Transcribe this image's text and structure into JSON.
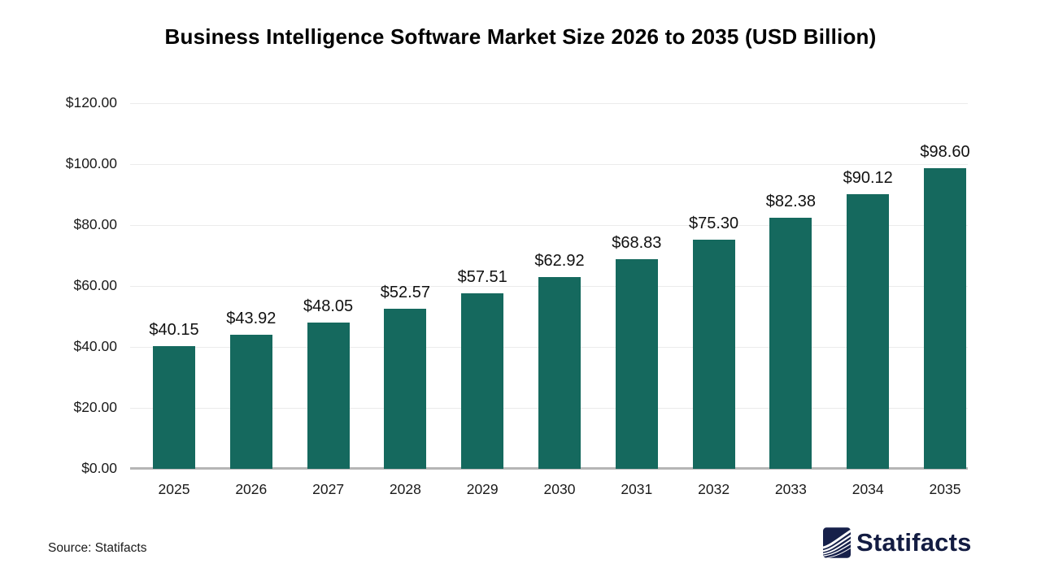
{
  "source": "Source: Statifacts",
  "brand": {
    "name": "Statifacts",
    "logo_icon": "statifacts-waves-icon",
    "color": "#131c42"
  },
  "colors": {
    "bar": "#15695e",
    "gridline": "#ebebeb",
    "axis_line": "#b5b5b5",
    "text": "#1a1a1a"
  },
  "chart_data": {
    "type": "bar",
    "title": "Business Intelligence Software Market Size 2026 to 2035 (USD Billion)",
    "categories": [
      "2025",
      "2026",
      "2027",
      "2028",
      "2029",
      "2030",
      "2031",
      "2032",
      "2033",
      "2034",
      "2035"
    ],
    "values": [
      40.15,
      43.92,
      48.05,
      52.57,
      57.51,
      62.92,
      68.83,
      75.3,
      82.38,
      90.12,
      98.6
    ],
    "labels": [
      "$40.15",
      "$43.92",
      "$48.05",
      "$52.57",
      "$57.51",
      "$62.92",
      "$68.83",
      "$75.30",
      "$82.38",
      "$90.12",
      "$98.60"
    ],
    "xlabel": "",
    "ylabel": "",
    "ylim": [
      0,
      120
    ],
    "yticks": [
      {
        "value": 0,
        "label": "$0.00"
      },
      {
        "value": 20,
        "label": "$20.00"
      },
      {
        "value": 40,
        "label": "$40.00"
      },
      {
        "value": 60,
        "label": "$60.00"
      },
      {
        "value": 80,
        "label": "$80.00"
      },
      {
        "value": 100,
        "label": "$100.00"
      },
      {
        "value": 120,
        "label": "$120.00"
      }
    ],
    "grid": true,
    "legend": false
  }
}
